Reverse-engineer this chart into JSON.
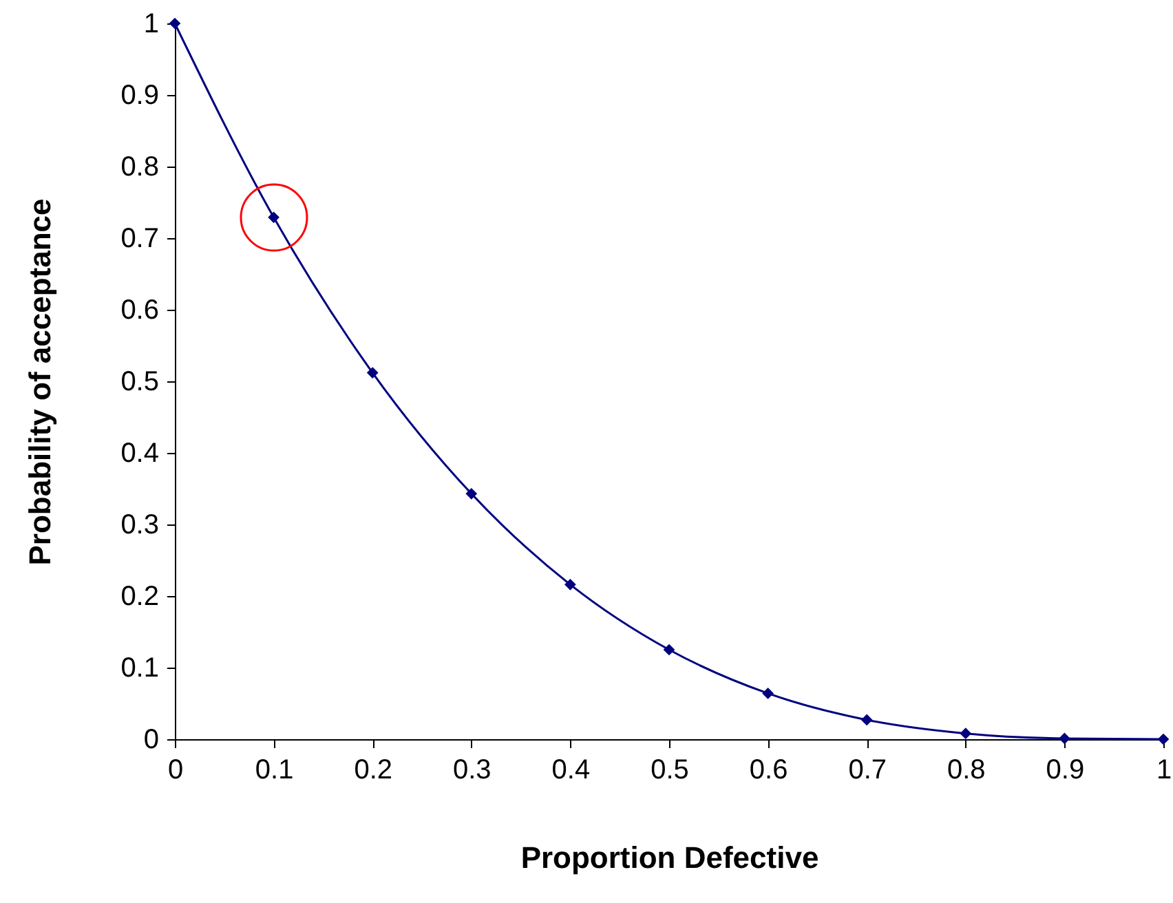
{
  "chart_data": {
    "type": "line",
    "xlabel": "Proportion Defective",
    "ylabel": "Probability of acceptance",
    "x": [
      0,
      0.1,
      0.2,
      0.3,
      0.4,
      0.5,
      0.6,
      0.7,
      0.8,
      0.9,
      1
    ],
    "series": [
      {
        "color": "#000080",
        "values": [
          1,
          0.729,
          0.512,
          0.343,
          0.216,
          0.125,
          0.064,
          0.027,
          0.008,
          0.001,
          0
        ]
      }
    ],
    "xlim": [
      0,
      1
    ],
    "ylim": [
      0,
      1
    ],
    "xticks": [
      0,
      0.1,
      0.2,
      0.3,
      0.4,
      0.5,
      0.6,
      0.7,
      0.8,
      0.9,
      1
    ],
    "yticks": [
      0,
      0.1,
      0.2,
      0.3,
      0.4,
      0.5,
      0.6,
      0.7,
      0.8,
      0.9,
      1
    ],
    "grid": false,
    "marker": "diamond",
    "line_style": "solid"
  }
}
